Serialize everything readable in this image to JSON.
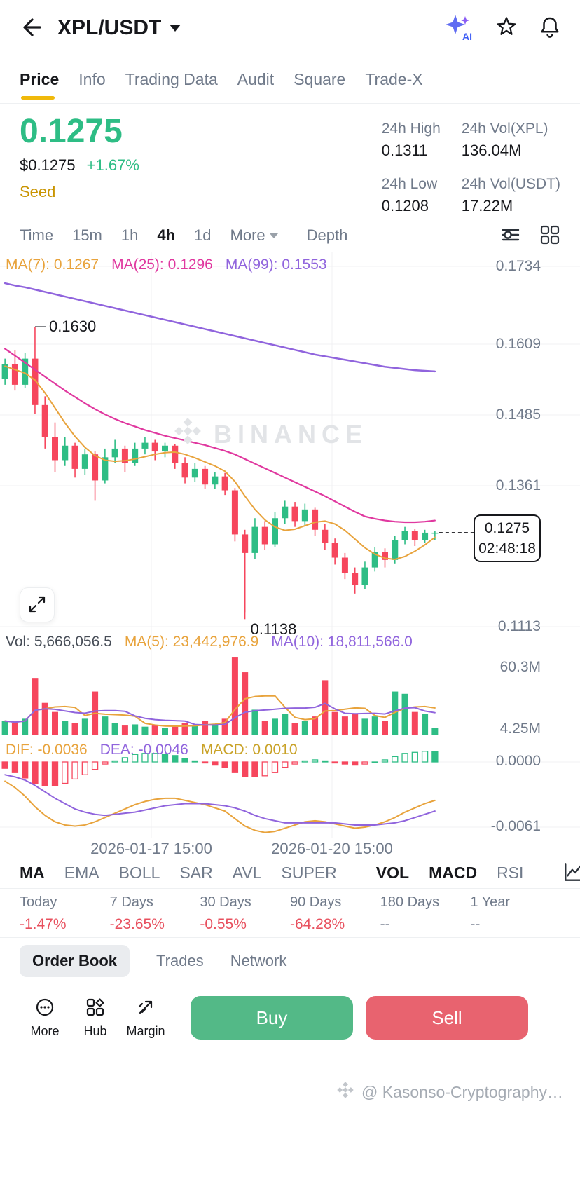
{
  "topbar": {
    "symbol": "XPL/USDT"
  },
  "icons": {
    "back": "arrow-left",
    "ai": "ai-sparkle",
    "ai_label": "AI",
    "favorite": "star-outline",
    "alerts": "bell-outline",
    "indicator_settings": "chart-settings-icon",
    "layout": "grid-layout-icon",
    "expand": "expand-arrows-icon",
    "more": "circle-ellipsis-icon",
    "hub": "squares-icon",
    "margin": "arrow-trade-icon",
    "watermark": "binance-diamond",
    "chart_edit": "chart-edit-icon"
  },
  "tabs": {
    "items": [
      {
        "label": "Price",
        "active": true
      },
      {
        "label": "Info",
        "active": false
      },
      {
        "label": "Trading Data",
        "active": false
      },
      {
        "label": "Audit",
        "active": false
      },
      {
        "label": "Square",
        "active": false
      },
      {
        "label": "Trade-X",
        "active": false
      }
    ]
  },
  "price": {
    "last": "0.1275",
    "fiat": "$0.1275",
    "change": "+1.67%",
    "tag": "Seed"
  },
  "stats": [
    {
      "label": "24h High",
      "value": "0.1311"
    },
    {
      "label": "24h Vol(XPL)",
      "value": "136.04M"
    },
    {
      "label": "24h Low",
      "value": "0.1208"
    },
    {
      "label": "24h Vol(USDT)",
      "value": "17.22M"
    }
  ],
  "toolbar": {
    "items": [
      "Time",
      "15m",
      "1h",
      "4h",
      "1d"
    ],
    "active": "4h",
    "more": "More",
    "depth": "Depth"
  },
  "colors": {
    "up": "#2EBD85",
    "down": "#F6465D",
    "accent": "#F0B90B",
    "ma7": "#E8A33C",
    "ma25": "#E0389F",
    "ma99": "#9064DD",
    "buy_button": "#53B987",
    "sell_button": "#E8636F",
    "perf_negative": "#E8505E"
  },
  "chart_data": {
    "type": "candlestick",
    "interval": "4h",
    "legend_ma": [
      {
        "text": "MA(7): 0.1267"
      },
      {
        "text": "MA(25): 0.1296"
      },
      {
        "text": "MA(99): 0.1553"
      }
    ],
    "legend_vol": [
      {
        "text": "Vol: 5,666,056.5"
      },
      {
        "text": "MA(5): 23,442,976.9"
      },
      {
        "text": "MA(10): 18,811,566.0"
      }
    ],
    "legend_macd": [
      {
        "text": "DIF: -0.0036"
      },
      {
        "text": "DEA: -0.0046"
      },
      {
        "text": "MACD: 0.0010"
      }
    ],
    "y_labels": [
      "0.1734",
      "0.1609",
      "0.1485",
      "0.1361",
      "0.1113"
    ],
    "vol_labels": [
      "60.3M",
      "4.25M"
    ],
    "macd_labels": [
      "0.0000",
      "-0.0061"
    ],
    "dates": [
      "2026-01-17 15:00",
      "2026-01-20 15:00"
    ],
    "watermark": "BINANCE",
    "annotations": {
      "high_text": "0.1630",
      "high_price": 0.163,
      "high_index": 3,
      "low_text": "0.1138",
      "low_price": 0.1138,
      "low_index": 24
    },
    "price_tag": {
      "price": "0.1275",
      "time": "02:48:18"
    },
    "price_range_visible": [
      0.1093,
      0.1758
    ],
    "candles": [
      [
        0.154,
        0.1575,
        0.153,
        0.1565
      ],
      [
        0.1565,
        0.159,
        0.152,
        0.153
      ],
      [
        0.153,
        0.1585,
        0.1525,
        0.1575
      ],
      [
        0.1575,
        0.163,
        0.148,
        0.1495
      ],
      [
        0.1495,
        0.151,
        0.142,
        0.144
      ],
      [
        0.144,
        0.1465,
        0.138,
        0.14
      ],
      [
        0.14,
        0.144,
        0.139,
        0.1425
      ],
      [
        0.1425,
        0.143,
        0.137,
        0.1385
      ],
      [
        0.1385,
        0.142,
        0.1375,
        0.141
      ],
      [
        0.141,
        0.1415,
        0.133,
        0.1365
      ],
      [
        0.1365,
        0.142,
        0.136,
        0.1405
      ],
      [
        0.1405,
        0.1435,
        0.1395,
        0.142
      ],
      [
        0.142,
        0.1425,
        0.138,
        0.1395
      ],
      [
        0.1395,
        0.143,
        0.139,
        0.142
      ],
      [
        0.142,
        0.144,
        0.141,
        0.143
      ],
      [
        0.143,
        0.1435,
        0.14,
        0.1415
      ],
      [
        0.1415,
        0.143,
        0.1405,
        0.1425
      ],
      [
        0.1425,
        0.1428,
        0.1385,
        0.1395
      ],
      [
        0.1395,
        0.1405,
        0.136,
        0.137
      ],
      [
        0.137,
        0.1395,
        0.1362,
        0.1385
      ],
      [
        0.1385,
        0.139,
        0.135,
        0.1358
      ],
      [
        0.1358,
        0.138,
        0.135,
        0.1372
      ],
      [
        0.1372,
        0.1378,
        0.134,
        0.1348
      ],
      [
        0.1348,
        0.1352,
        0.126,
        0.1272
      ],
      [
        0.1272,
        0.128,
        0.1138,
        0.124
      ],
      [
        0.124,
        0.13,
        0.123,
        0.1285
      ],
      [
        0.1285,
        0.1295,
        0.1245,
        0.1255
      ],
      [
        0.1255,
        0.131,
        0.125,
        0.13
      ],
      [
        0.13,
        0.133,
        0.129,
        0.132
      ],
      [
        0.132,
        0.1328,
        0.1285,
        0.1295
      ],
      [
        0.1295,
        0.1325,
        0.1288,
        0.1315
      ],
      [
        0.1315,
        0.1318,
        0.127,
        0.128
      ],
      [
        0.128,
        0.129,
        0.1245,
        0.1258
      ],
      [
        0.1258,
        0.1265,
        0.122,
        0.1232
      ],
      [
        0.1232,
        0.124,
        0.1195,
        0.1205
      ],
      [
        0.1205,
        0.1215,
        0.117,
        0.1185
      ],
      [
        0.1185,
        0.1225,
        0.1178,
        0.1215
      ],
      [
        0.1215,
        0.125,
        0.1208,
        0.1242
      ],
      [
        0.1242,
        0.1248,
        0.1215,
        0.1228
      ],
      [
        0.1228,
        0.127,
        0.1222,
        0.1262
      ],
      [
        0.1262,
        0.1285,
        0.1255,
        0.1278
      ],
      [
        0.1278,
        0.1282,
        0.1252,
        0.1262
      ],
      [
        0.1262,
        0.128,
        0.1258,
        0.1275
      ],
      [
        0.1275,
        0.1278,
        0.1262,
        0.1275
      ]
    ],
    "ma7": [
      0.1562,
      0.1556,
      0.155,
      0.1538,
      0.1516,
      0.149,
      0.1464,
      0.1441,
      0.1422,
      0.1408,
      0.14,
      0.1398,
      0.1399,
      0.1402,
      0.1406,
      0.141,
      0.1413,
      0.1414,
      0.141,
      0.1404,
      0.1397,
      0.139,
      0.1381,
      0.1363,
      0.1338,
      0.1315,
      0.1297,
      0.1285,
      0.1279,
      0.1281,
      0.1287,
      0.1293,
      0.1295,
      0.129,
      0.1279,
      0.1264,
      0.1249,
      0.1238,
      0.1231,
      0.1229,
      0.1234,
      0.1243,
      0.1254,
      0.1267
    ],
    "ma25": [
      0.1592,
      0.158,
      0.1568,
      0.1556,
      0.1544,
      0.1532,
      0.152,
      0.1509,
      0.1498,
      0.1488,
      0.1479,
      0.1471,
      0.1464,
      0.1458,
      0.1452,
      0.1447,
      0.1442,
      0.1438,
      0.1434,
      0.143,
      0.1426,
      0.1421,
      0.1416,
      0.141,
      0.1402,
      0.1394,
      0.1386,
      0.1378,
      0.137,
      0.1362,
      0.1354,
      0.1346,
      0.1338,
      0.1329,
      0.132,
      0.1311,
      0.1303,
      0.1299,
      0.1296,
      0.1294,
      0.1293,
      0.1293,
      0.1294,
      0.1296
    ],
    "ma99": [
      0.1705,
      0.1701,
      0.1698,
      0.1694,
      0.169,
      0.1686,
      0.1682,
      0.1678,
      0.1674,
      0.167,
      0.1666,
      0.1662,
      0.1658,
      0.1654,
      0.165,
      0.1646,
      0.1642,
      0.1638,
      0.1634,
      0.163,
      0.1626,
      0.1622,
      0.1618,
      0.1614,
      0.161,
      0.1606,
      0.1602,
      0.1598,
      0.1594,
      0.159,
      0.1586,
      0.1582,
      0.1579,
      0.1576,
      0.1573,
      0.157,
      0.1567,
      0.1564,
      0.1561,
      0.1559,
      0.1557,
      0.1555,
      0.1554,
      0.1553
    ],
    "vol_millions": [
      12,
      10,
      14,
      50,
      28,
      20,
      12,
      10,
      14,
      38,
      16,
      10,
      8,
      9,
      7,
      8,
      6,
      7,
      10,
      8,
      12,
      9,
      14,
      68,
      55,
      22,
      12,
      14,
      18,
      10,
      12,
      16,
      48,
      20,
      16,
      18,
      14,
      16,
      12,
      38,
      36,
      20,
      18,
      5.7
    ],
    "dif": [
      -0.0018,
      -0.0024,
      -0.0032,
      -0.0042,
      -0.005,
      -0.0056,
      -0.0059,
      -0.006,
      -0.0059,
      -0.0056,
      -0.0052,
      -0.0048,
      -0.0044,
      -0.004,
      -0.0037,
      -0.0035,
      -0.0034,
      -0.0034,
      -0.0036,
      -0.0038,
      -0.004,
      -0.0043,
      -0.0046,
      -0.0053,
      -0.006,
      -0.0064,
      -0.0066,
      -0.0065,
      -0.0062,
      -0.0059,
      -0.0056,
      -0.0055,
      -0.0056,
      -0.0058,
      -0.006,
      -0.0062,
      -0.0061,
      -0.0059,
      -0.0056,
      -0.0052,
      -0.0047,
      -0.0043,
      -0.0039,
      -0.0036
    ],
    "dea": [
      -0.0012,
      -0.0014,
      -0.0017,
      -0.0022,
      -0.0028,
      -0.0034,
      -0.0039,
      -0.0044,
      -0.0047,
      -0.0049,
      -0.005,
      -0.0049,
      -0.0048,
      -0.0047,
      -0.0045,
      -0.0043,
      -0.0041,
      -0.004,
      -0.0039,
      -0.0039,
      -0.0039,
      -0.004,
      -0.0041,
      -0.0043,
      -0.0046,
      -0.005,
      -0.0053,
      -0.0055,
      -0.0057,
      -0.0057,
      -0.0057,
      -0.0057,
      -0.0057,
      -0.0057,
      -0.0058,
      -0.0059,
      -0.0059,
      -0.0059,
      -0.0058,
      -0.0057,
      -0.0055,
      -0.0052,
      -0.0049,
      -0.0046
    ]
  },
  "indicators": {
    "left": [
      "MA",
      "EMA",
      "BOLL",
      "SAR",
      "AVL",
      "SUPER"
    ],
    "right": [
      "VOL",
      "MACD",
      "RSI"
    ],
    "active": [
      "MA",
      "VOL",
      "MACD"
    ]
  },
  "performance": [
    {
      "label": "Today",
      "value": "-1.47%"
    },
    {
      "label": "7 Days",
      "value": "-23.65%"
    },
    {
      "label": "30 Days",
      "value": "-0.55%"
    },
    {
      "label": "90 Days",
      "value": "-64.28%"
    },
    {
      "label": "180 Days",
      "value": "--"
    },
    {
      "label": "1 Year",
      "value": "--"
    }
  ],
  "orderbook": {
    "tabs": [
      "Order Book",
      "Trades",
      "Network"
    ],
    "active": "Order Book"
  },
  "actions": {
    "more": "More",
    "hub": "Hub",
    "margin": "Margin",
    "buy": "Buy",
    "sell": "Sell"
  },
  "footer": {
    "text": "@ Kasonso-Cryptography…"
  }
}
